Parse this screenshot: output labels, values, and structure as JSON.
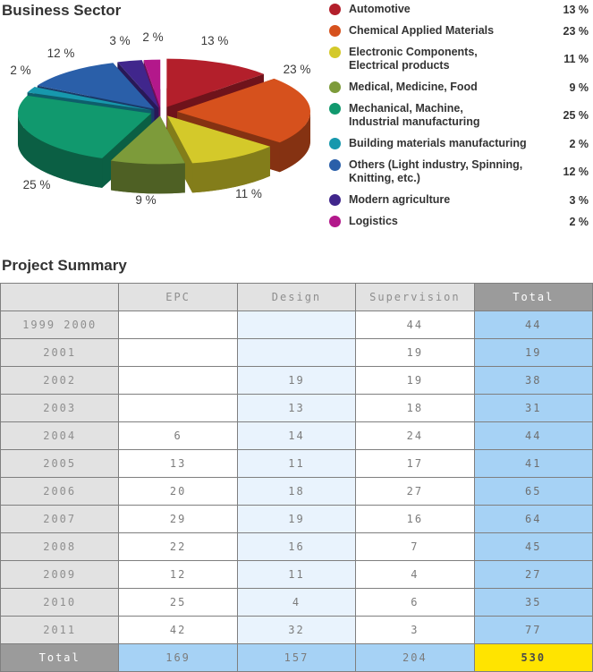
{
  "sections": {
    "business_sector": "Business Sector",
    "project_summary": "Project Summary"
  },
  "chart_data": {
    "type": "pie",
    "title": "Business Sector",
    "style": "3d-exploded",
    "start_angle": "top",
    "direction": "clockwise",
    "legend_position": "right",
    "unit": "%",
    "slices": [
      {
        "label": "Automotive",
        "legend_lines": [
          "Automotive"
        ],
        "value": 13,
        "color": "#b31f2b"
      },
      {
        "label": "Chemical Applied Materials",
        "legend_lines": [
          "Chemical Applied Materials"
        ],
        "value": 23,
        "color": "#d6511d"
      },
      {
        "label": "Electronic Components, Electrical products",
        "legend_lines": [
          "Electronic Components,",
          "Electrical products"
        ],
        "value": 11,
        "color": "#d4c92a"
      },
      {
        "label": "Medical, Medicine, Food",
        "legend_lines": [
          "Medical, Medicine, Food"
        ],
        "value": 9,
        "color": "#7d9b3a"
      },
      {
        "label": "Mechanical, Machine, Industrial manufacturing",
        "legend_lines": [
          "Mechanical, Machine,",
          "Industrial manufacturing"
        ],
        "value": 25,
        "color": "#11996e"
      },
      {
        "label": "Building materials manufacturing",
        "legend_lines": [
          "Building materials manufacturing"
        ],
        "value": 2,
        "color": "#1798ad"
      },
      {
        "label": "Others (Light industry, Spinning, Knitting, etc.)",
        "legend_lines": [
          "Others (Light industry, Spinning,",
          "Knitting, etc.)"
        ],
        "value": 12,
        "color": "#2a5fa9"
      },
      {
        "label": "Modern agriculture",
        "legend_lines": [
          "Modern agriculture"
        ],
        "value": 3,
        "color": "#40268c"
      },
      {
        "label": "Logistics",
        "legend_lines": [
          "Logistics"
        ],
        "value": 2,
        "color": "#b3188b"
      }
    ]
  },
  "table": {
    "title": "Project Summary",
    "columns": [
      "",
      "EPC",
      "Design",
      "Supervision",
      "Total"
    ],
    "rows": [
      {
        "year": "1999 2000",
        "epc": "",
        "design": "",
        "supervision": "44",
        "total": "44"
      },
      {
        "year": "2001",
        "epc": "",
        "design": "",
        "supervision": "19",
        "total": "19"
      },
      {
        "year": "2002",
        "epc": "",
        "design": "19",
        "supervision": "19",
        "total": "38"
      },
      {
        "year": "2003",
        "epc": "",
        "design": "13",
        "supervision": "18",
        "total": "31"
      },
      {
        "year": "2004",
        "epc": "6",
        "design": "14",
        "supervision": "24",
        "total": "44"
      },
      {
        "year": "2005",
        "epc": "13",
        "design": "11",
        "supervision": "17",
        "total": "41"
      },
      {
        "year": "2006",
        "epc": "20",
        "design": "18",
        "supervision": "27",
        "total": "65"
      },
      {
        "year": "2007",
        "epc": "29",
        "design": "19",
        "supervision": "16",
        "total": "64"
      },
      {
        "year": "2008",
        "epc": "22",
        "design": "16",
        "supervision": "7",
        "total": "45"
      },
      {
        "year": "2009",
        "epc": "12",
        "design": "11",
        "supervision": "4",
        "total": "27"
      },
      {
        "year": "2010",
        "epc": "25",
        "design": "4",
        "supervision": "6",
        "total": "35"
      },
      {
        "year": "2011",
        "epc": "42",
        "design": "32",
        "supervision": "3",
        "total": "77"
      }
    ],
    "footer": {
      "year": "Total",
      "epc": "169",
      "design": "157",
      "supervision": "204",
      "total": "530"
    }
  },
  "colors": {
    "table_border": "#7f7f7f",
    "header_bg": "#e2e2e2",
    "header_text": "#8e8e8e",
    "design_col_bg": "#e9f3fd",
    "total_col_bg": "#a6d2f5",
    "total_label_bg": "#9b9b9b",
    "grand_total_bg": "#ffe400"
  }
}
